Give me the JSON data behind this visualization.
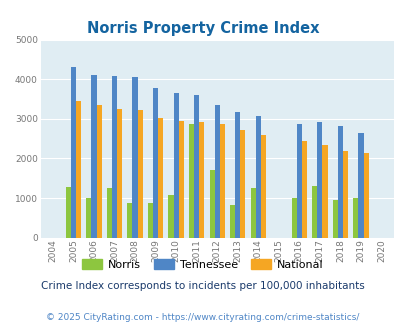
{
  "title": "Norris Property Crime Index",
  "years": [
    2004,
    2005,
    2006,
    2007,
    2008,
    2009,
    2010,
    2011,
    2012,
    2013,
    2014,
    2015,
    2016,
    2017,
    2018,
    2019,
    2020
  ],
  "norris": [
    0,
    1280,
    1000,
    1250,
    880,
    880,
    1080,
    2880,
    1700,
    820,
    1250,
    0,
    1000,
    1310,
    940,
    1010,
    0
  ],
  "tennessee": [
    0,
    4300,
    4100,
    4070,
    4050,
    3770,
    3660,
    3590,
    3360,
    3180,
    3060,
    0,
    2870,
    2930,
    2830,
    2630,
    0
  ],
  "national": [
    0,
    3440,
    3340,
    3240,
    3210,
    3030,
    2940,
    2930,
    2870,
    2720,
    2590,
    0,
    2450,
    2350,
    2190,
    2130,
    0
  ],
  "norris_color": "#8dc63f",
  "tennessee_color": "#4f86c6",
  "national_color": "#f5a623",
  "plot_bg": "#e0edf3",
  "ylim": [
    0,
    5000
  ],
  "yticks": [
    0,
    1000,
    2000,
    3000,
    4000,
    5000
  ],
  "footnote1": "Crime Index corresponds to incidents per 100,000 inhabitants",
  "footnote2": "© 2025 CityRating.com - https://www.cityrating.com/crime-statistics/",
  "title_color": "#1464a0",
  "footnote1_color": "#1a3a6b",
  "footnote2_color": "#4f86c6"
}
